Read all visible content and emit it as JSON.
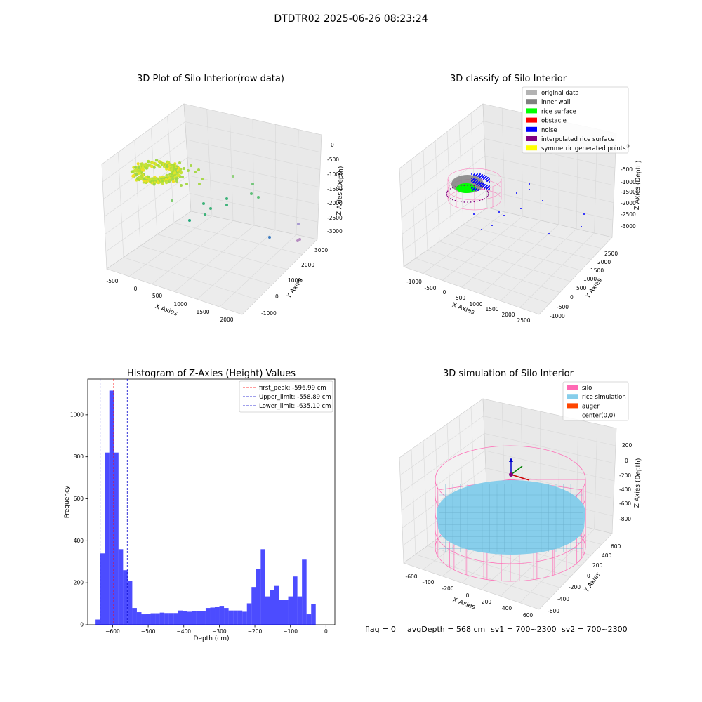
{
  "figure": {
    "suptitle": "DTDTR02 2025-06-26 08:23:24",
    "footer": {
      "flag": "flag = 0",
      "avg_depth": "avgDepth = 568 cm",
      "sv1": "sv1 = 700~2300",
      "sv2": "sv2 = 700~2300"
    }
  },
  "panels": {
    "raw": {
      "title": "3D Plot of Silo Interior(row data)",
      "xlabel": "X Axies",
      "ylabel": "Y Axies",
      "zlabel": "Z Axies (Depth)",
      "xticks": [
        "-500",
        "0",
        "500",
        "1000",
        "1500",
        "2000"
      ],
      "yticks": [
        "-1000",
        "0",
        "1000",
        "2000",
        "3000"
      ],
      "zticks": [
        "0",
        "-500",
        "-1000",
        "-1500",
        "-2000",
        "-2500",
        "-3000"
      ]
    },
    "classify": {
      "title": "3D classify of Silo Interior",
      "xlabel": "X Axies",
      "ylabel": "Y Axies",
      "zlabel": "Z Axies (Depth)",
      "xticks": [
        "-1000",
        "-500",
        "0",
        "500",
        "1000",
        "1500",
        "2000",
        "2500"
      ],
      "yticks": [
        "-1000",
        "-500",
        "0",
        "500",
        "1000",
        "1500",
        "2000",
        "2500"
      ],
      "zticks": [
        "0",
        "-500",
        "-1000",
        "-1500",
        "-2000",
        "-2500",
        "-3000"
      ],
      "legend": [
        {
          "label": "original data",
          "color": "#b3b3b3"
        },
        {
          "label": "inner wall",
          "color": "#808080"
        },
        {
          "label": "rice surface",
          "color": "#00ff00"
        },
        {
          "label": "obstacle",
          "color": "#ff0000"
        },
        {
          "label": "noise",
          "color": "#0000ff"
        },
        {
          "label": "interpolated rice surface",
          "color": "#800080"
        },
        {
          "label": "symmetric generated points",
          "color": "#ffff00"
        }
      ]
    },
    "simulation": {
      "title": "3D simulation of Silo Interior",
      "xlabel": "X Axies",
      "ylabel": "Y Axies",
      "zlabel": "Z Axies (Depth)",
      "xticks": [
        "-600",
        "-400",
        "-200",
        "0",
        "200",
        "400",
        "600"
      ],
      "yticks": [
        "-600",
        "-400",
        "-200",
        "0",
        "200",
        "400",
        "600"
      ],
      "zticks": [
        "200",
        "0",
        "-200",
        "-400",
        "-600",
        "-800"
      ],
      "legend": [
        {
          "label": "silo",
          "color": "#ff69b4"
        },
        {
          "label": "rice simulation",
          "color": "#87ceeb"
        },
        {
          "label": "auger",
          "color": "#ff4500"
        },
        {
          "label": "center(0,0)",
          "color": ""
        }
      ]
    }
  },
  "chart_data": {
    "type": "bar",
    "title": "Histogram of Z-Axies (Height) Values",
    "xlabel": "Depth (cm)",
    "ylabel": "Frequency",
    "xlim": [
      -670,
      25
    ],
    "ylim": [
      0,
      1170
    ],
    "xticks": [
      -600,
      -500,
      -400,
      -300,
      -200,
      -100,
      0
    ],
    "yticks": [
      0,
      200,
      400,
      600,
      800,
      1000
    ],
    "bar_color": "#0000ff",
    "bin_start": -648,
    "bin_width": 12.9,
    "values": [
      25,
      340,
      820,
      1115,
      820,
      360,
      260,
      210,
      80,
      60,
      50,
      52,
      55,
      55,
      58,
      56,
      56,
      56,
      68,
      64,
      62,
      66,
      66,
      66,
      80,
      82,
      86,
      90,
      80,
      68,
      68,
      68,
      62,
      102,
      180,
      265,
      360,
      135,
      165,
      185,
      118,
      118,
      135,
      230,
      135,
      310,
      50,
      100
    ],
    "lines": [
      {
        "label": "first_peak: -596.99 cm",
        "x": -596.99,
        "color": "#ff0000"
      },
      {
        "label": "Upper_limit: -558.89 cm",
        "x": -558.89,
        "color": "#0000cc"
      },
      {
        "label": "Lower_limit: -635.10 cm",
        "x": -635.1,
        "color": "#0000cc"
      }
    ]
  }
}
